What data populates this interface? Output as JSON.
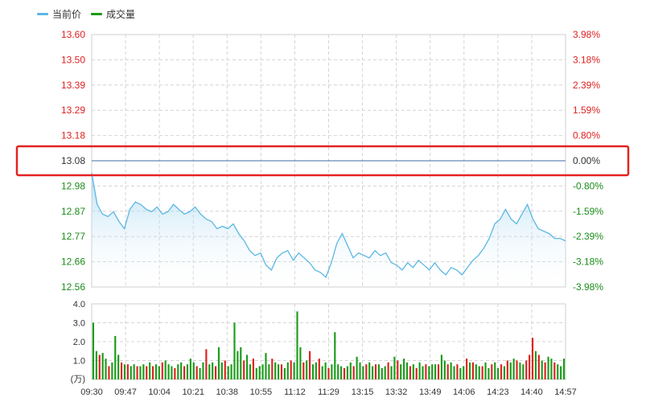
{
  "legend": {
    "price_label": "当前价",
    "volume_label": "成交量"
  },
  "colors": {
    "price_line": "#5bb7e4",
    "volume_up": "#e02020",
    "volume_down": "#1a9c1a",
    "axis_up": "#e02020",
    "axis_down": "#1a8c1a",
    "axis_neutral": "#333333",
    "highlight_box": "#e42222",
    "grid": "#d4d4d4"
  },
  "chart_data": [
    {
      "type": "line",
      "series": [
        {
          "name": "当前价",
          "values": [
            13.03,
            12.9,
            12.86,
            12.85,
            12.87,
            12.83,
            12.8,
            12.88,
            12.91,
            12.9,
            12.88,
            12.87,
            12.89,
            12.86,
            12.87,
            12.9,
            12.88,
            12.86,
            12.87,
            12.89,
            12.86,
            12.84,
            12.83,
            12.8,
            12.81,
            12.8,
            12.82,
            12.78,
            12.75,
            12.71,
            12.69,
            12.7,
            12.65,
            12.63,
            12.68,
            12.7,
            12.71,
            12.67,
            12.7,
            12.68,
            12.66,
            12.63,
            12.62,
            12.6,
            12.66,
            12.74,
            12.78,
            12.73,
            12.68,
            12.7,
            12.69,
            12.68,
            12.71,
            12.69,
            12.7,
            12.66,
            12.65,
            12.63,
            12.66,
            12.64,
            12.67,
            12.65,
            12.63,
            12.66,
            12.63,
            12.61,
            12.64,
            12.63,
            12.61,
            12.64,
            12.67,
            12.69,
            12.72,
            12.76,
            12.82,
            12.84,
            12.88,
            12.84,
            12.82,
            12.86,
            12.9,
            12.84,
            12.8,
            12.79,
            12.78,
            12.76,
            12.76,
            12.75
          ]
        }
      ],
      "yaxis_left": [
        "13.60",
        "13.50",
        "13.39",
        "13.29",
        "13.18",
        "13.08",
        "12.98",
        "12.87",
        "12.77",
        "12.66",
        "12.56"
      ],
      "yaxis_right": [
        "3.98%",
        "3.18%",
        "2.39%",
        "1.59%",
        "0.80%",
        "0.00%",
        "-0.80%",
        "-1.59%",
        "-2.39%",
        "-3.18%",
        "-3.98%"
      ],
      "ylim": [
        12.56,
        13.6
      ],
      "reference_price": 13.08,
      "reference_price_label": "13.08",
      "reference_pct_label": "0.00%",
      "area_fill": true,
      "grid": true
    },
    {
      "type": "bar",
      "ylabel": "(万)",
      "yaxis_labels": [
        "4.0",
        "3.0",
        "2.0",
        "1.0"
      ],
      "ylim": [
        0,
        4.0
      ],
      "values": [
        3.0,
        1.5,
        1.3,
        1.4,
        1.1,
        0.7,
        0.9,
        2.3,
        1.3,
        0.9,
        0.8,
        0.8,
        0.7,
        0.8,
        0.7,
        0.7,
        0.8,
        0.7,
        0.9,
        0.7,
        0.8,
        0.7,
        0.9,
        1.0,
        0.8,
        0.7,
        0.6,
        0.8,
        0.9,
        0.7,
        0.8,
        1.1,
        0.9,
        0.7,
        0.6,
        0.9,
        1.6,
        0.8,
        0.9,
        0.7,
        1.7,
        0.9,
        1.0,
        0.7,
        0.8,
        3.0,
        1.5,
        1.7,
        1.0,
        1.3,
        0.8,
        1.1,
        0.6,
        0.7,
        0.8,
        1.4,
        0.8,
        1.1,
        0.9,
        0.8,
        0.8,
        0.6,
        0.9,
        1.0,
        0.9,
        3.6,
        1.7,
        0.9,
        1.0,
        1.5,
        0.8,
        0.9,
        1.1,
        0.7,
        0.9,
        0.6,
        0.8,
        2.5,
        0.8,
        0.7,
        0.6,
        0.7,
        0.9,
        0.7,
        1.2,
        0.9,
        0.7,
        0.8,
        0.9,
        0.7,
        0.8,
        0.8,
        0.6,
        0.7,
        0.9,
        0.7,
        1.2,
        1.0,
        0.8,
        1.1,
        0.9,
        0.7,
        0.8,
        0.6,
        0.9,
        0.7,
        0.8,
        0.7,
        0.8,
        0.8,
        0.8,
        1.3,
        1.0,
        0.8,
        0.9,
        0.7,
        0.8,
        0.6,
        0.7,
        1.1,
        0.9,
        0.9,
        0.8,
        0.7,
        0.7,
        0.9,
        0.6,
        0.8,
        0.9,
        0.6,
        0.8,
        0.7,
        1.0,
        0.9,
        1.1,
        1.0,
        0.9,
        0.8,
        1.0,
        1.3,
        2.2,
        1.5,
        1.3,
        1.0,
        0.9,
        1.2,
        1.1,
        0.9,
        0.8,
        0.7,
        1.1
      ],
      "up": [
        0,
        0,
        1,
        0,
        0,
        1,
        0,
        0,
        0,
        1,
        0,
        1,
        0,
        0,
        1,
        0,
        0,
        1,
        0,
        1,
        0,
        0,
        1,
        0,
        0,
        0,
        1,
        0,
        0,
        1,
        0,
        0,
        0,
        1,
        0,
        0,
        1,
        0,
        0,
        1,
        0,
        0,
        1,
        0,
        0,
        0,
        0,
        0,
        1,
        0,
        0,
        1,
        0,
        0,
        0,
        0,
        0,
        1,
        0,
        0,
        1,
        0,
        0,
        1,
        0,
        0,
        0,
        1,
        0,
        1,
        0,
        0,
        1,
        0,
        0,
        1,
        0,
        0,
        0,
        0,
        1,
        0,
        0,
        1,
        0,
        0,
        0,
        1,
        0,
        0,
        1,
        0,
        0,
        0,
        1,
        0,
        0,
        1,
        0,
        0,
        0,
        1,
        0,
        1,
        0,
        0,
        1,
        0,
        0,
        0,
        1,
        0,
        0,
        1,
        0,
        0,
        1,
        0,
        0,
        1,
        0,
        1,
        0,
        0,
        1,
        0,
        0,
        1,
        0,
        0,
        1,
        0,
        1,
        0,
        0,
        1,
        0,
        0,
        1,
        1,
        1,
        0,
        1,
        0,
        1,
        0,
        0,
        1,
        0,
        0,
        0,
        1,
        0
      ]
    }
  ],
  "xaxis_labels": [
    "09:30",
    "09:47",
    "10:04",
    "10:21",
    "10:38",
    "10:55",
    "11:12",
    "11:29",
    "13:15",
    "13:32",
    "13:49",
    "14:06",
    "14:23",
    "14:40",
    "14:57"
  ]
}
